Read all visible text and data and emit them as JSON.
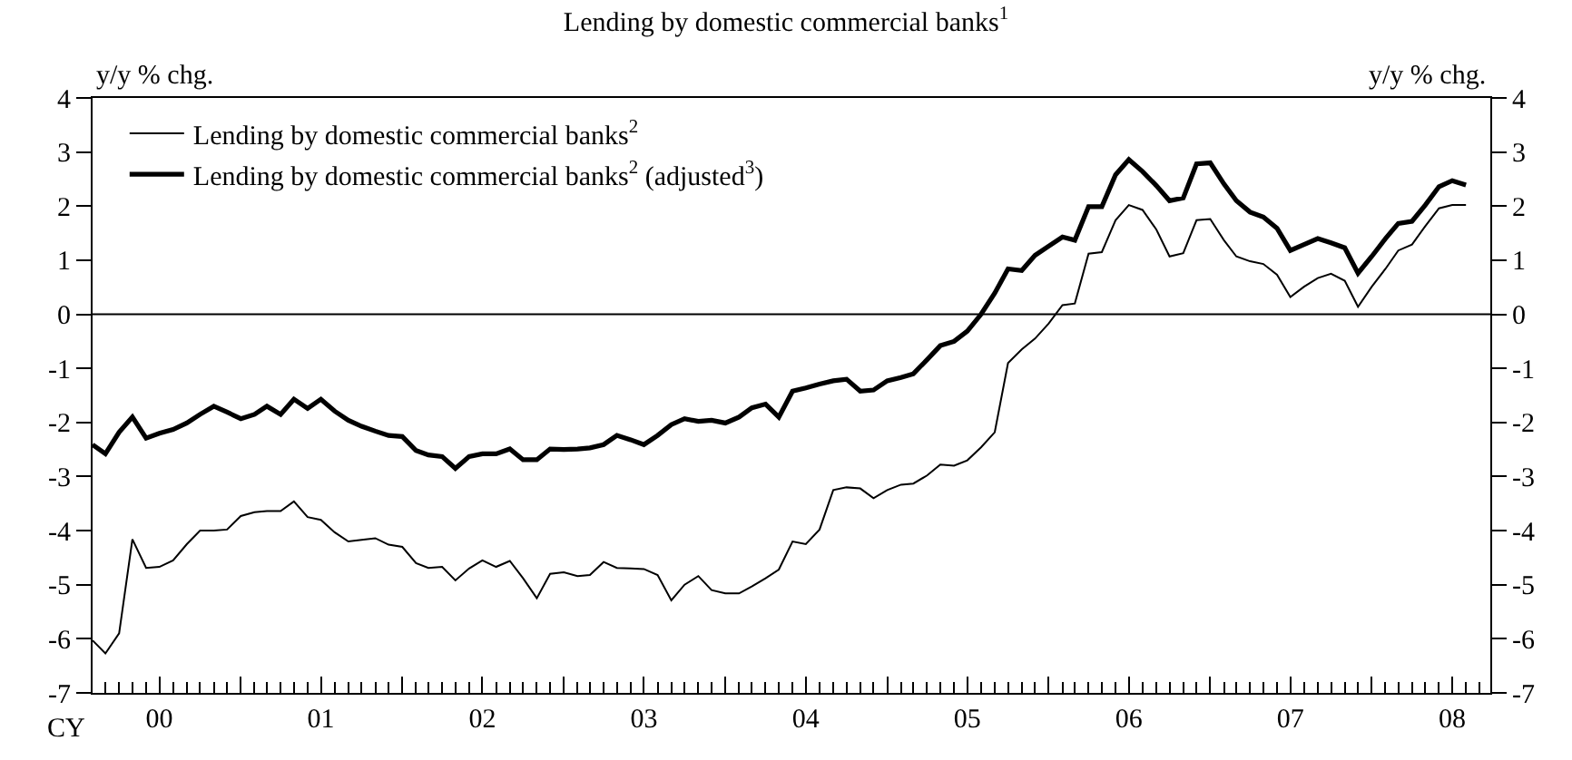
{
  "chart_data": {
    "type": "line",
    "title": "Lending by domestic commercial banks$^{1}$",
    "ylabel": "y/y % chg.",
    "y2label": "y/y % chg.",
    "x": [
      "2000-02",
      "2000-03",
      "2000-04",
      "2000-05",
      "2000-06",
      "2000-07",
      "2000-08",
      "2000-09",
      "2000-10",
      "2000-11",
      "2000-12",
      "2001-01",
      "2001-02",
      "2001-03",
      "2001-04",
      "2001-05",
      "2001-06",
      "2001-07",
      "2001-08",
      "2001-09",
      "2001-10",
      "2001-11",
      "2001-12",
      "2002-01",
      "2002-02",
      "2002-03",
      "2002-04",
      "2002-05",
      "2002-06",
      "2002-07",
      "2002-08",
      "2002-09",
      "2002-10",
      "2002-11",
      "2002-12",
      "2003-01",
      "2003-02",
      "2003-03",
      "2003-04",
      "2003-05",
      "2003-06",
      "2003-07",
      "2003-08",
      "2003-09",
      "2003-10",
      "2003-11",
      "2003-12",
      "2004-01",
      "2004-02",
      "2004-03",
      "2004-04",
      "2004-05",
      "2004-06",
      "2004-07",
      "2004-08",
      "2004-09",
      "2004-10",
      "2004-11",
      "2004-12",
      "2005-01",
      "2005-02",
      "2005-03",
      "2005-04",
      "2005-05",
      "2005-06",
      "2005-07",
      "2005-08",
      "2005-09",
      "2005-10",
      "2005-11",
      "2005-12",
      "2006-01",
      "2006-02",
      "2006-03",
      "2006-04",
      "2006-05",
      "2006-06",
      "2006-07",
      "2006-08",
      "2006-09",
      "2006-10",
      "2006-11",
      "2006-12",
      "2007-01",
      "2007-02",
      "2007-03",
      "2007-04",
      "2007-05",
      "2007-06",
      "2007-07",
      "2007-08",
      "2007-09",
      "2007-10",
      "2007-11",
      "2007-12",
      "2008-01",
      "2008-02",
      "2008-03",
      "2008-04",
      "2008-05",
      "2008-06",
      "2008-07",
      "2008-08"
    ],
    "series": [
      {
        "name": "Lending by domestic commercial banks$^{2}$",
        "color": "#000000",
        "values": [
          -6.03,
          -6.27,
          -5.9,
          -4.16,
          -4.69,
          -4.67,
          -4.55,
          -4.25,
          -4.0,
          -4.0,
          -3.98,
          -3.73,
          -3.66,
          -3.64,
          -3.64,
          -3.46,
          -3.75,
          -3.8,
          -4.03,
          -4.2,
          -4.17,
          -4.14,
          -4.26,
          -4.3,
          -4.6,
          -4.69,
          -4.67,
          -4.92,
          -4.7,
          -4.55,
          -4.67,
          -4.56,
          -4.88,
          -5.25,
          -4.8,
          -4.77,
          -4.84,
          -4.82,
          -4.58,
          -4.69,
          -4.7,
          -4.71,
          -4.82,
          -5.29,
          -5.0,
          -4.84,
          -5.1,
          -5.16,
          -5.16,
          -5.03,
          -4.88,
          -4.72,
          -4.2,
          -4.25,
          -3.98,
          -3.25,
          -3.2,
          -3.22,
          -3.4,
          -3.25,
          -3.15,
          -3.13,
          -2.98,
          -2.78,
          -2.8,
          -2.7,
          -2.46,
          -2.18,
          -0.9,
          -0.65,
          -0.45,
          -0.17,
          0.17,
          0.2,
          1.12,
          1.15,
          1.74,
          2.02,
          1.93,
          1.57,
          1.07,
          1.13,
          1.74,
          1.76,
          1.37,
          1.07,
          0.98,
          0.93,
          0.73,
          0.32,
          0.51,
          0.67,
          0.75,
          0.62,
          0.14,
          0.51,
          0.84,
          1.18,
          1.29,
          1.63,
          1.96,
          2.02,
          2.02
        ]
      },
      {
        "name": "Lending by domestic commercial banks$^{2}$ (adjusted$^{3}$)",
        "color": "#000000",
        "values": [
          -2.41,
          -2.58,
          -2.18,
          -1.9,
          -2.29,
          -2.2,
          -2.13,
          -2.01,
          -1.85,
          -1.7,
          -1.81,
          -1.93,
          -1.85,
          -1.7,
          -1.85,
          -1.57,
          -1.74,
          -1.57,
          -1.79,
          -1.96,
          -2.07,
          -2.16,
          -2.24,
          -2.26,
          -2.52,
          -2.6,
          -2.63,
          -2.85,
          -2.63,
          -2.58,
          -2.58,
          -2.49,
          -2.69,
          -2.69,
          -2.49,
          -2.5,
          -2.49,
          -2.47,
          -2.41,
          -2.24,
          -2.32,
          -2.41,
          -2.24,
          -2.04,
          -1.93,
          -1.98,
          -1.96,
          -2.01,
          -1.9,
          -1.73,
          -1.66,
          -1.9,
          -1.42,
          -1.36,
          -1.29,
          -1.23,
          -1.2,
          -1.42,
          -1.4,
          -1.23,
          -1.17,
          -1.1,
          -0.84,
          -0.58,
          -0.5,
          -0.31,
          0.0,
          0.39,
          0.84,
          0.81,
          1.09,
          1.26,
          1.43,
          1.37,
          1.99,
          1.99,
          2.58,
          2.86,
          2.64,
          2.38,
          2.1,
          2.15,
          2.78,
          2.8,
          2.41,
          2.1,
          1.89,
          1.8,
          1.59,
          1.18,
          1.29,
          1.4,
          1.32,
          1.23,
          0.76,
          1.07,
          1.4,
          1.68,
          1.72,
          2.02,
          2.36,
          2.47,
          2.39
        ]
      }
    ],
    "xlim": [
      "2000-02-01",
      "2008-09-25"
    ],
    "xticks": [
      {
        "value": "2000-07-01",
        "label": "00"
      },
      {
        "value": "2001-01-01",
        "label": null
      },
      {
        "value": "2001-07-01",
        "label": "01"
      },
      {
        "value": "2002-01-01",
        "label": null
      },
      {
        "value": "2002-07-01",
        "label": "02"
      },
      {
        "value": "2003-01-01",
        "label": null
      },
      {
        "value": "2003-07-01",
        "label": "03"
      },
      {
        "value": "2004-01-01",
        "label": null
      },
      {
        "value": "2004-07-01",
        "label": "04"
      },
      {
        "value": "2005-01-01",
        "label": null
      },
      {
        "value": "2005-07-01",
        "label": "05"
      },
      {
        "value": "2006-01-01",
        "label": null
      },
      {
        "value": "2006-07-01",
        "label": "06"
      },
      {
        "value": "2007-01-01",
        "label": null
      },
      {
        "value": "2007-07-01",
        "label": "07"
      },
      {
        "value": "2008-01-01",
        "label": null
      },
      {
        "value": "2008-07-01",
        "label": "08"
      }
    ],
    "ylim": [
      -7,
      4
    ],
    "yticks": [
      -7,
      -6,
      -5,
      -4,
      -3,
      -2,
      -1,
      0,
      1,
      2,
      3,
      4
    ],
    "y2lim": [
      -7,
      4
    ],
    "y2ticks": [
      -7,
      -6,
      -5,
      -4,
      -3,
      -2,
      -1,
      0,
      1,
      2,
      3,
      4
    ],
    "ref_lines": [
      {
        "axis": "y",
        "value": 0,
        "color": "#000000"
      }
    ],
    "annotations": [
      "CY"
    ],
    "legend": "top left",
    "grid": false,
    "marker": "none",
    "line_style": "solid"
  }
}
